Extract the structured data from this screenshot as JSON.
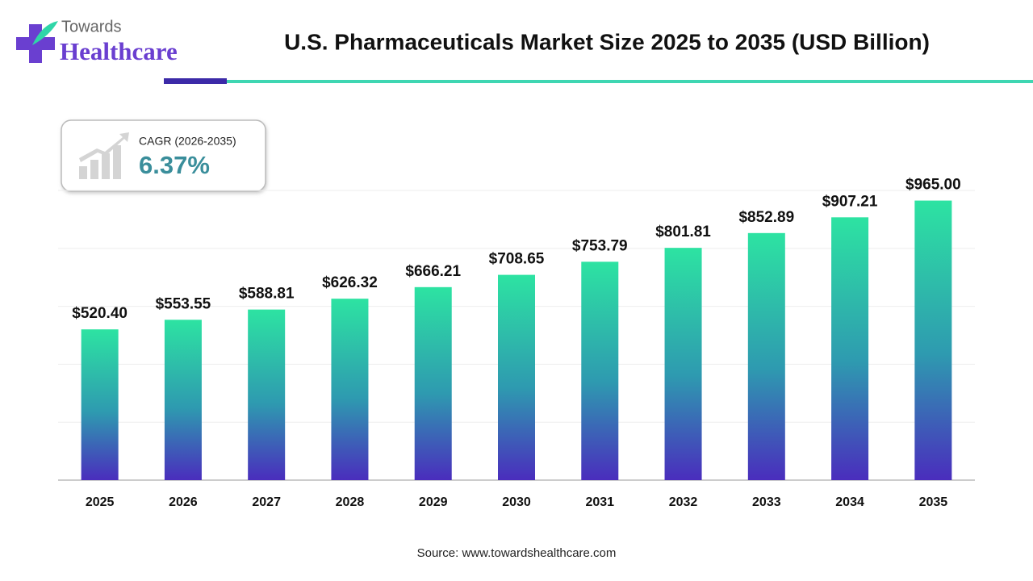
{
  "header": {
    "logo_top": "Towards",
    "logo_bottom": "Healthcare"
  },
  "chart_data": {
    "type": "bar",
    "title": "U.S. Pharmaceuticals Market Size 2025 to 2035 (USD Billion)",
    "categories": [
      "2025",
      "2026",
      "2027",
      "2028",
      "2029",
      "2030",
      "2031",
      "2032",
      "2033",
      "2034",
      "2035"
    ],
    "values": [
      520.4,
      553.55,
      588.81,
      626.32,
      666.21,
      708.65,
      753.79,
      801.81,
      852.89,
      907.21,
      965.0
    ],
    "value_labels": [
      "$520.40",
      "$553.55",
      "$588.81",
      "$626.32",
      "$666.21",
      "$708.65",
      "$753.79",
      "$801.81",
      "$852.89",
      "$907.21",
      "$965.00"
    ],
    "color_top": "#2de3a2",
    "color_bottom": "#4a2dbd",
    "ylim": [
      0,
      1000
    ],
    "yticks": [
      0,
      200,
      400,
      600,
      800,
      1000
    ],
    "grid": true,
    "cagr_label": "CAGR (2026-2035)",
    "cagr_value": "6.37%",
    "source": "Source: www.towardshealthcare.com"
  }
}
